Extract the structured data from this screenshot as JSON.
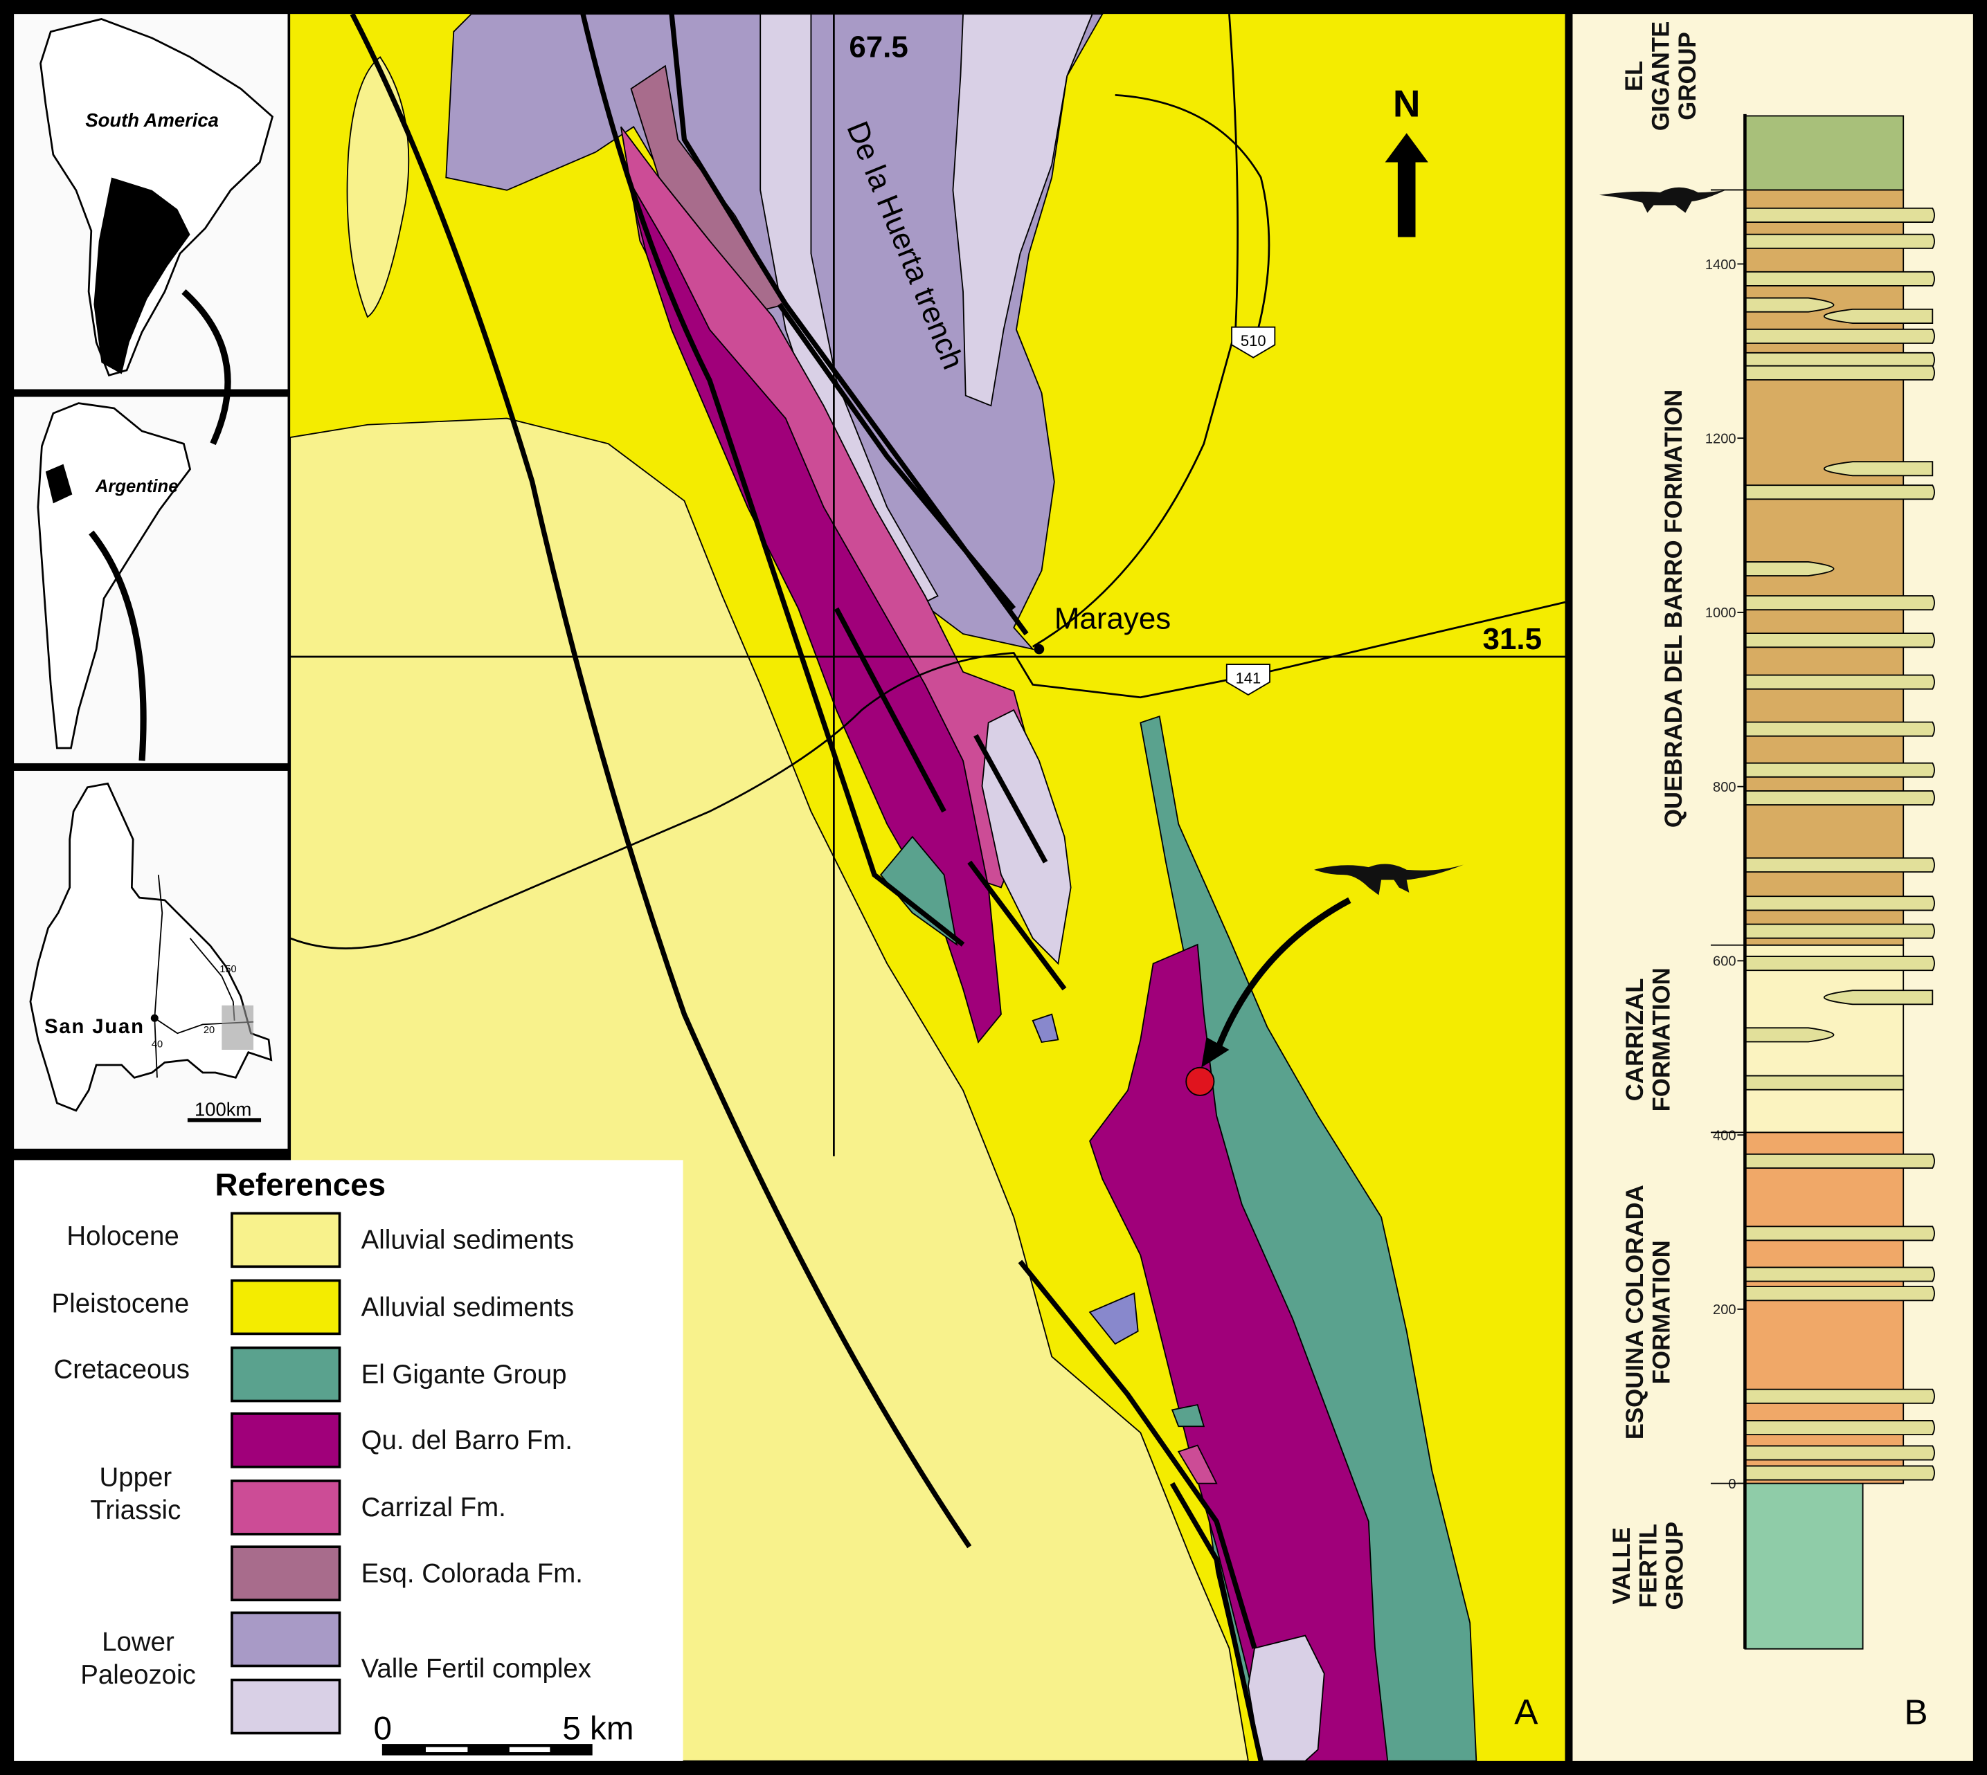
{
  "panel_labels": {
    "map": "A",
    "column": "B"
  },
  "insets": {
    "south_america_label": "South America",
    "argentina_label": "Argentine",
    "san_juan_label": "San Juan",
    "road_shields": [
      "150",
      "20",
      "40"
    ],
    "scale_label": "100km"
  },
  "map": {
    "longitude_label": "67.5",
    "latitude_label": "31.5",
    "town_label": "Marayes",
    "trench_label": "De la Huerta trench",
    "north_label": "N",
    "road_shields": [
      "510",
      "141"
    ],
    "scale": {
      "start": "0",
      "end": "5 km"
    },
    "colors": {
      "holocene": "#f8f28c",
      "pleistocene": "#f4ec00",
      "el_gigante": "#5aa28e",
      "qu_del_barro": "#a0007a",
      "carrizal": "#cc4c96",
      "esq_colorada": "#a86c8c",
      "paleozoic_purple": "#a89ac6",
      "valle_fertil": "#d9d0e6",
      "fossil_site": "#e0141e"
    }
  },
  "legend": {
    "title": "References",
    "rows": [
      {
        "era": "Holocene",
        "unit": "Alluvial sediments",
        "color": "#f8f28c"
      },
      {
        "era": "Pleistocene",
        "unit": "Alluvial sediments",
        "color": "#f4ec00"
      },
      {
        "era": "Cretaceous",
        "unit": "El Gigante Group",
        "color": "#5aa28e"
      },
      {
        "era": "Upper Triassic",
        "unit": "Qu. del Barro Fm.",
        "color": "#a0007a"
      },
      {
        "era": "",
        "unit": "Carrizal Fm.",
        "color": "#cc4c96"
      },
      {
        "era": "",
        "unit": "Esq. Colorada Fm.",
        "color": "#a86c8c"
      },
      {
        "era": "Lower Paleozoic",
        "unit": "",
        "color": "#a89ac6"
      },
      {
        "era": "",
        "unit": "Valle Fertil complex",
        "color": "#d9d0e6"
      }
    ],
    "upper_triassic": [
      "Upper",
      "Triassic"
    ],
    "lower_paleozoic": [
      "Lower",
      "Paleozoic"
    ]
  },
  "column": {
    "ticks": [
      "0",
      "200",
      "400",
      "600",
      "800",
      "1000",
      "1200",
      "1400"
    ],
    "formations": [
      {
        "name": [
          "VALLE",
          "FERTIL",
          "GROUP"
        ],
        "bottom_m": -190,
        "top_m": 0,
        "color": "#8fcca8"
      },
      {
        "name": [
          "ESQUINA COLORADA",
          "FORMATION"
        ],
        "bottom_m": 0,
        "top_m": 403,
        "color": "#f0a868"
      },
      {
        "name": [
          "CARRIZAL",
          "FORMATION"
        ],
        "bottom_m": 403,
        "top_m": 618,
        "color": "#fbf3c0"
      },
      {
        "name": [
          "QUEBRADA DEL BARRO FORMATION"
        ],
        "bottom_m": 618,
        "top_m": 1485,
        "color": "#d8ac62"
      },
      {
        "name": [
          "EL",
          "GIGANTE",
          "GROUP"
        ],
        "bottom_m": 1485,
        "top_m": 1570,
        "color": "#a8c07a"
      }
    ],
    "conglomerate_color": "#e2e09a",
    "beds": [
      {
        "m": 1456,
        "type": "bed"
      },
      {
        "m": 1426,
        "type": "bed"
      },
      {
        "m": 1383,
        "type": "bed"
      },
      {
        "m": 1353,
        "type": "lens-left"
      },
      {
        "m": 1340,
        "type": "lens-right"
      },
      {
        "m": 1317,
        "type": "bed"
      },
      {
        "m": 1290,
        "type": "bed"
      },
      {
        "m": 1275,
        "type": "bed"
      },
      {
        "m": 1165,
        "type": "lens-right"
      },
      {
        "m": 1138,
        "type": "bed"
      },
      {
        "m": 1050,
        "type": "lens-left"
      },
      {
        "m": 1011,
        "type": "bed"
      },
      {
        "m": 968,
        "type": "bed"
      },
      {
        "m": 920,
        "type": "bed"
      },
      {
        "m": 866,
        "type": "bed"
      },
      {
        "m": 819,
        "type": "bed"
      },
      {
        "m": 787,
        "type": "bed"
      },
      {
        "m": 710,
        "type": "bed"
      },
      {
        "m": 666,
        "type": "bed"
      },
      {
        "m": 634,
        "type": "bed"
      },
      {
        "m": 597,
        "type": "bed"
      },
      {
        "m": 558,
        "type": "lens-right"
      },
      {
        "m": 515,
        "type": "lens-left"
      },
      {
        "m": 460,
        "type": "flat"
      },
      {
        "m": 370,
        "type": "bed"
      },
      {
        "m": 287,
        "type": "bed"
      },
      {
        "m": 240,
        "type": "bed"
      },
      {
        "m": 218,
        "type": "bed"
      },
      {
        "m": 100,
        "type": "bed"
      },
      {
        "m": 64,
        "type": "bed"
      },
      {
        "m": 35,
        "type": "bed"
      },
      {
        "m": 12,
        "type": "bed"
      }
    ],
    "dinosaur_level_m": 1485
  }
}
